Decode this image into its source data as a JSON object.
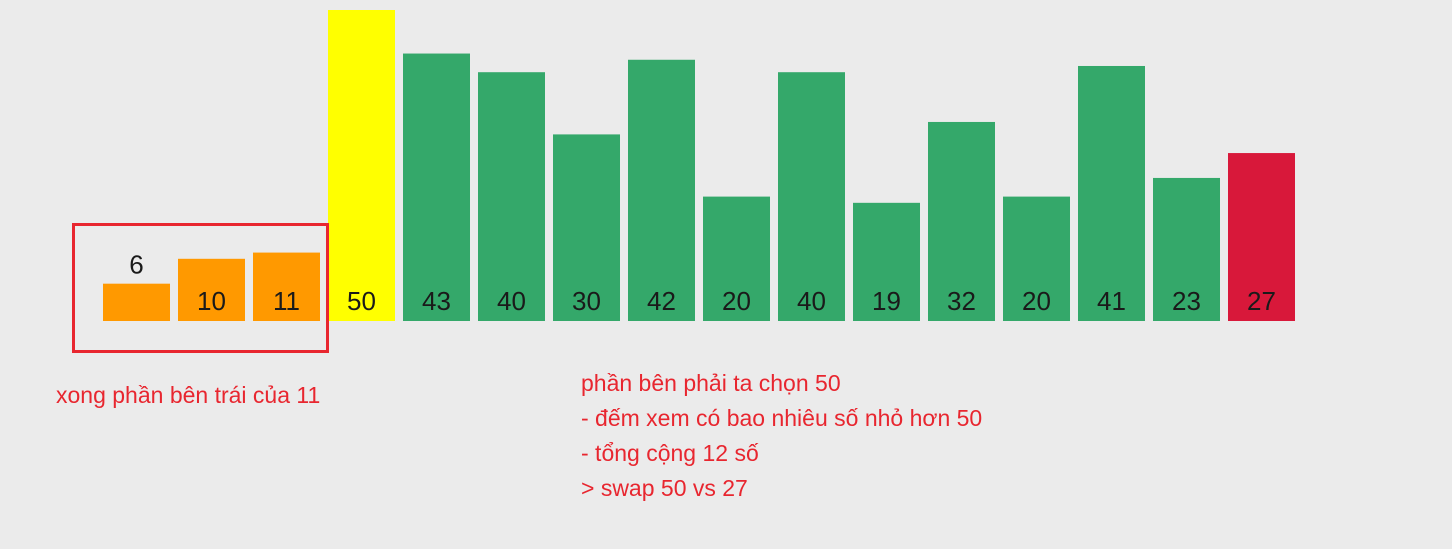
{
  "chart_data": {
    "type": "bar",
    "categories": [
      "6",
      "10",
      "11",
      "50",
      "43",
      "40",
      "30",
      "42",
      "20",
      "40",
      "19",
      "32",
      "20",
      "41",
      "23",
      "27"
    ],
    "values": [
      6,
      10,
      11,
      50,
      43,
      40,
      30,
      42,
      20,
      40,
      19,
      32,
      20,
      41,
      23,
      27
    ],
    "bar_states": [
      "done",
      "done",
      "done",
      "pivot",
      "unsorted",
      "unsorted",
      "unsorted",
      "unsorted",
      "unsorted",
      "unsorted",
      "unsorted",
      "unsorted",
      "unsorted",
      "unsorted",
      "unsorted",
      "swap-target"
    ],
    "state_colors": {
      "done": "#ff9900",
      "pivot": "#ffff00",
      "unsorted": "#34a86a",
      "swap-target": "#d8183a"
    },
    "title": "",
    "xlabel": "",
    "ylabel": "",
    "ylim": [
      0,
      50
    ],
    "grid": false,
    "legend": "none"
  },
  "annotations": {
    "left_note": "xong phần bên trái của 11",
    "right_note_lines": [
      "phần bên phải ta chọn 50",
      "- đếm xem có bao nhiêu số nhỏ hơn 50",
      "- tổng cộng 12 số",
      "> swap 50 vs 27"
    ]
  },
  "colors": {
    "annotation": "#e8262f",
    "background": "#ebebeb"
  }
}
